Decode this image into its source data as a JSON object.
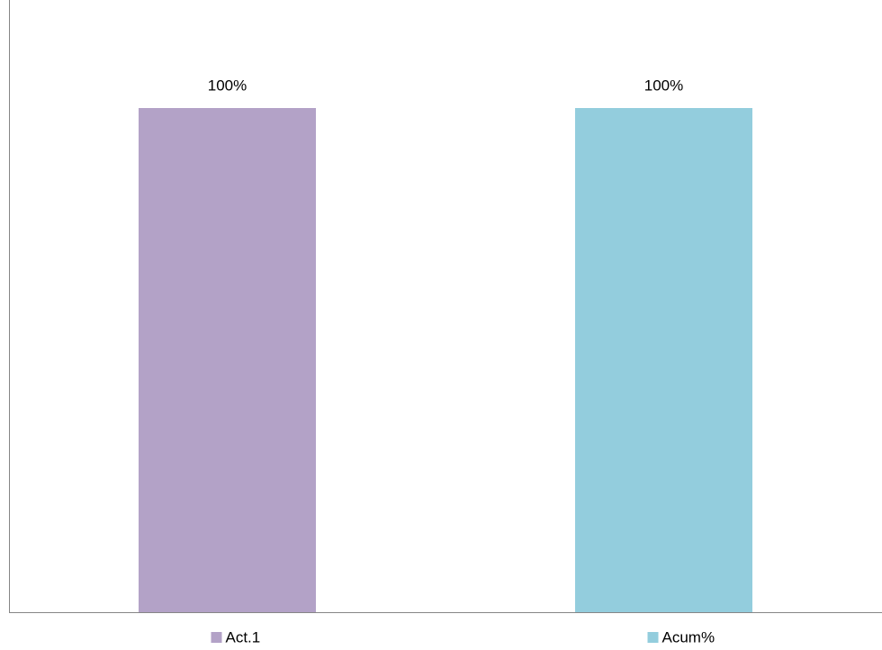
{
  "chart_data": {
    "type": "bar",
    "categories": [
      null
    ],
    "series": [
      {
        "name": "Act.1",
        "color": "#b3a2c7",
        "values": [
          100
        ],
        "value_labels": [
          "100%"
        ]
      },
      {
        "name": "Acum%",
        "color": "#93cddd",
        "values": [
          100
        ],
        "value_labels": [
          "100%"
        ]
      }
    ],
    "ylim": [
      0,
      120
    ],
    "legend": "bottom"
  }
}
